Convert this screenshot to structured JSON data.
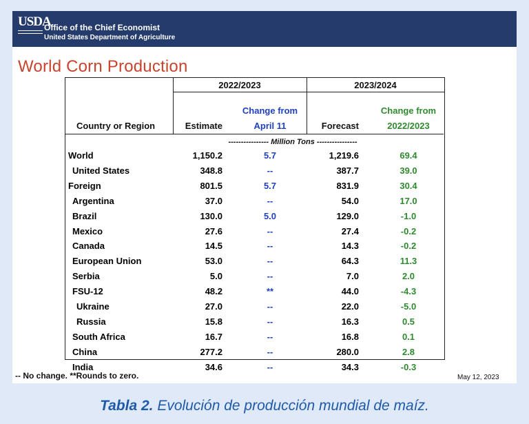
{
  "header": {
    "logo": "USDA",
    "office": "Office of the Chief Economist",
    "department": "United States Department of Agriculture"
  },
  "title": "World Corn Production",
  "table": {
    "group1": "2022/2023",
    "group2": "2023/2024",
    "col_region": "Country or Region",
    "col_estimate": "Estimate",
    "col_change1_line1": "Change from",
    "col_change1_line2": "April 11",
    "col_forecast": "Forecast",
    "col_change2_line1": "Change from",
    "col_change2_line2": "2022/2023",
    "units": "---------------- Million Tons ----------------",
    "rows": [
      {
        "region": "World",
        "indent": 0,
        "estimate": "1,150.2",
        "change_april": "5.7",
        "forecast": "1,219.6",
        "change_prev": "69.4"
      },
      {
        "region": "United States",
        "indent": 1,
        "estimate": "348.8",
        "change_april": "--",
        "forecast": "387.7",
        "change_prev": "39.0"
      },
      {
        "region": "Foreign",
        "indent": 0,
        "estimate": "801.5",
        "change_april": "5.7",
        "forecast": "831.9",
        "change_prev": "30.4"
      },
      {
        "region": "Argentina",
        "indent": 1,
        "estimate": "37.0",
        "change_april": "--",
        "forecast": "54.0",
        "change_prev": "17.0"
      },
      {
        "region": "Brazil",
        "indent": 1,
        "estimate": "130.0",
        "change_april": "5.0",
        "forecast": "129.0",
        "change_prev": "-1.0"
      },
      {
        "region": "Mexico",
        "indent": 1,
        "estimate": "27.6",
        "change_april": "--",
        "forecast": "27.4",
        "change_prev": "-0.2"
      },
      {
        "region": "Canada",
        "indent": 1,
        "estimate": "14.5",
        "change_april": "--",
        "forecast": "14.3",
        "change_prev": "-0.2"
      },
      {
        "region": "European Union",
        "indent": 1,
        "estimate": "53.0",
        "change_april": "--",
        "forecast": "64.3",
        "change_prev": "11.3"
      },
      {
        "region": "Serbia",
        "indent": 1,
        "estimate": "5.0",
        "change_april": "--",
        "forecast": "7.0",
        "change_prev": "2.0"
      },
      {
        "region": "FSU-12",
        "indent": 1,
        "estimate": "48.2",
        "change_april": "**",
        "forecast": "44.0",
        "change_prev": "-4.3"
      },
      {
        "region": "Ukraine",
        "indent": 2,
        "estimate": "27.0",
        "change_april": "--",
        "forecast": "22.0",
        "change_prev": "-5.0"
      },
      {
        "region": "Russia",
        "indent": 2,
        "estimate": "15.8",
        "change_april": "--",
        "forecast": "16.3",
        "change_prev": "0.5"
      },
      {
        "region": "South Africa",
        "indent": 1,
        "estimate": "16.7",
        "change_april": "--",
        "forecast": "16.8",
        "change_prev": "0.1"
      },
      {
        "region": "China",
        "indent": 1,
        "estimate": "277.2",
        "change_april": "--",
        "forecast": "280.0",
        "change_prev": "2.8"
      },
      {
        "region": "India",
        "indent": 1,
        "estimate": "34.6",
        "change_april": "--",
        "forecast": "34.3",
        "change_prev": "-0.3"
      }
    ]
  },
  "footnote": "-- No change.  **Rounds to zero.",
  "date": "May 12, 2023",
  "caption": {
    "label": "Tabla 2.",
    "text": " Evolución de producción mundial de maíz."
  },
  "colors": {
    "banner": "#243b6b",
    "title": "#c8442c",
    "blue": "#1f3fbf",
    "green": "#2f8a2f",
    "caption": "#1e5aa8"
  }
}
